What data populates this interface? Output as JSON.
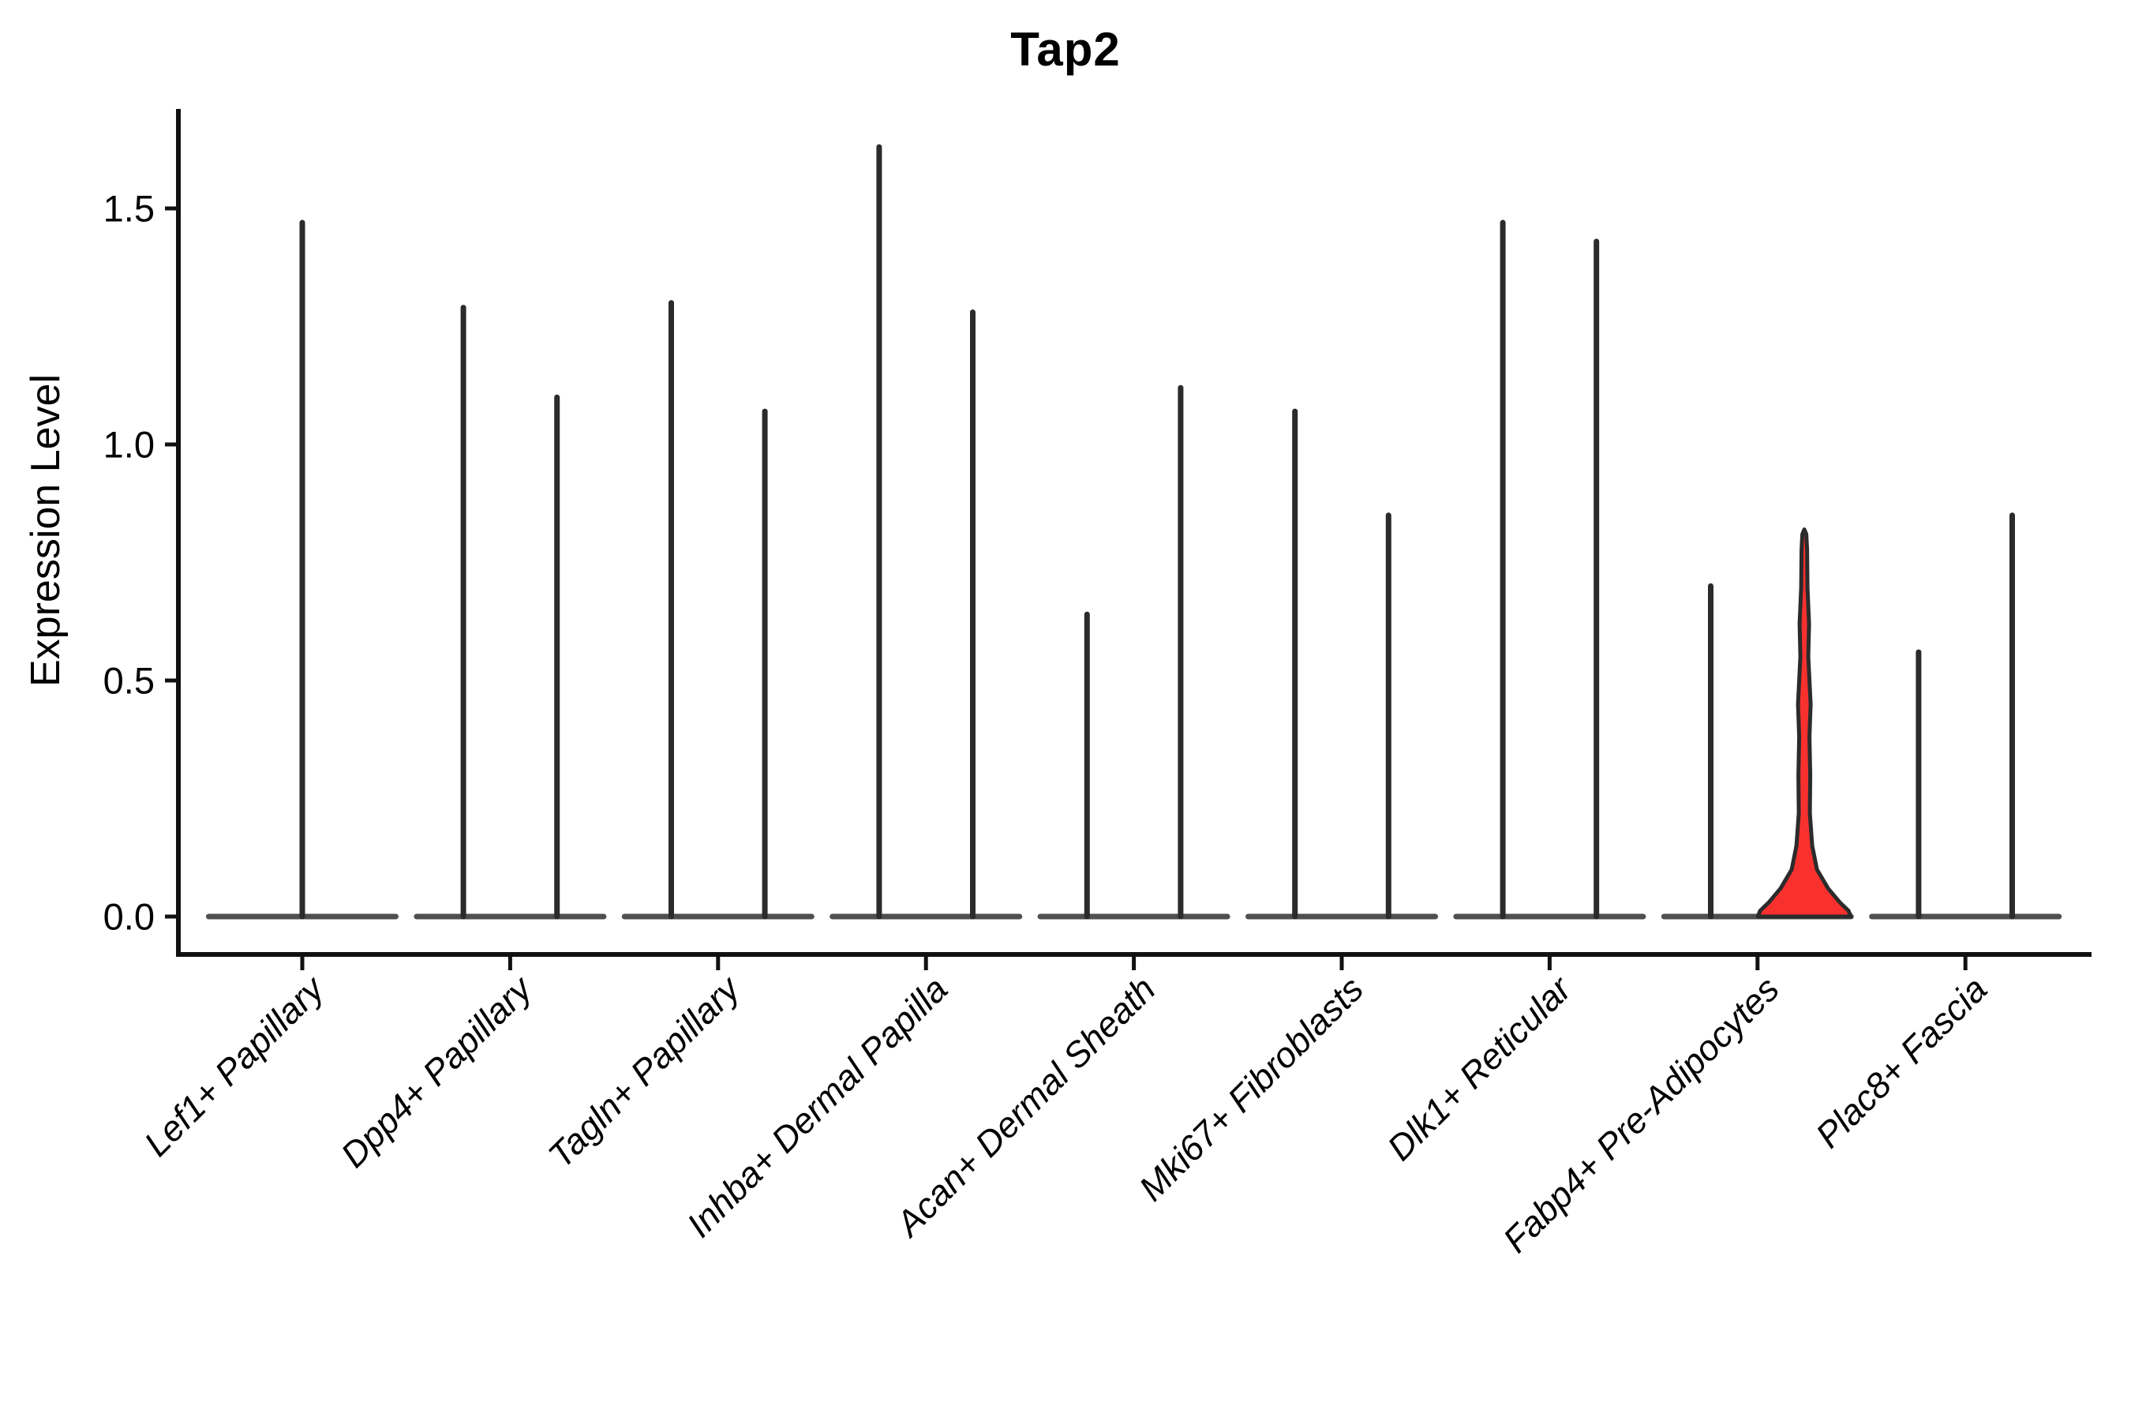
{
  "figure": {
    "title": "Tap2",
    "background": "#ffffff"
  },
  "axes": {
    "y_label": "Expression Level"
  },
  "chart_data": {
    "type": "violin",
    "title": "Tap2",
    "xlabel": "",
    "ylabel": "Expression Level",
    "ylim": [
      -0.08,
      1.71
    ],
    "y_ticks": [
      0.0,
      0.5,
      1.0,
      1.5
    ],
    "y_tick_labels": [
      "0.0",
      "0.5",
      "1.0",
      "1.5"
    ],
    "grid": false,
    "legend_position": "none",
    "categories": [
      "Lef1+ Papillary",
      "Dpp4+ Papillary",
      "Tagln+ Papillary",
      "Inhba+ Dermal Papilla",
      "Acan+ Dermal Sheath",
      "Mki67+ Fibroblasts",
      "Dlk1+ Reticular",
      "Fabp4+ Pre-Adipocytes",
      "Plac8+ Fascia"
    ],
    "series": [
      {
        "category": "Lef1+ Papillary",
        "violins": [
          {
            "pos": "center",
            "max": 1.47,
            "highlight": false
          }
        ]
      },
      {
        "category": "Dpp4+ Papillary",
        "violins": [
          {
            "pos": "left",
            "max": 1.29,
            "highlight": false
          },
          {
            "pos": "right",
            "max": 1.1,
            "highlight": false
          }
        ]
      },
      {
        "category": "Tagln+ Papillary",
        "violins": [
          {
            "pos": "left",
            "max": 1.3,
            "highlight": false
          },
          {
            "pos": "right",
            "max": 1.07,
            "highlight": false
          }
        ]
      },
      {
        "category": "Inhba+ Dermal Papilla",
        "violins": [
          {
            "pos": "left",
            "max": 1.63,
            "highlight": false
          },
          {
            "pos": "right",
            "max": 1.28,
            "highlight": false
          }
        ]
      },
      {
        "category": "Acan+ Dermal Sheath",
        "violins": [
          {
            "pos": "left",
            "max": 0.64,
            "highlight": false
          },
          {
            "pos": "right",
            "max": 1.12,
            "highlight": false
          }
        ]
      },
      {
        "category": "Mki67+ Fibroblasts",
        "violins": [
          {
            "pos": "left",
            "max": 1.07,
            "highlight": false
          },
          {
            "pos": "right",
            "max": 0.85,
            "highlight": false
          }
        ]
      },
      {
        "category": "Dlk1+ Reticular",
        "violins": [
          {
            "pos": "left",
            "max": 1.47,
            "highlight": false
          },
          {
            "pos": "right",
            "max": 1.43,
            "highlight": false
          }
        ]
      },
      {
        "category": "Fabp4+ Pre-Adipocytes",
        "violins": [
          {
            "pos": "left",
            "max": 0.7,
            "highlight": false
          },
          {
            "pos": "right",
            "max": 0.81,
            "highlight": true
          }
        ]
      },
      {
        "category": "Plac8+ Fascia",
        "violins": [
          {
            "pos": "left",
            "max": 0.56,
            "highlight": false
          },
          {
            "pos": "right",
            "max": 0.85,
            "highlight": false
          }
        ]
      }
    ]
  },
  "colors": {
    "violin_stroke": "#2b2b2b",
    "baseline": "#4f4f4f",
    "highlight_fill": "#f8312f",
    "axis": "#111111",
    "text": "#000000"
  }
}
